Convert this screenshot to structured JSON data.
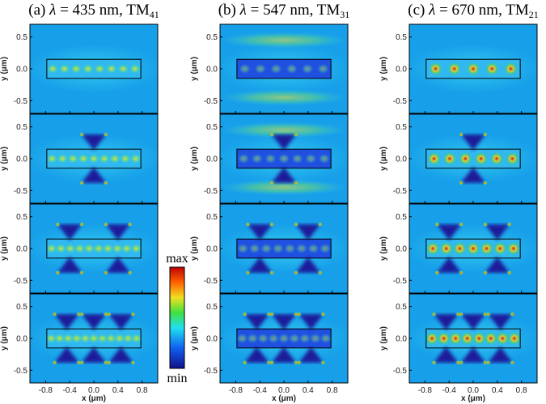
{
  "panels": [
    {
      "prefix": "(a) ",
      "symbol": "λ",
      "rest": " = 435 nm, TM",
      "mode": "41"
    },
    {
      "prefix": "(b) ",
      "symbol": "λ",
      "rest": " = 547 nm, TM",
      "mode": "31"
    },
    {
      "prefix": "(c) ",
      "symbol": "λ",
      "rest": " = 670 nm, TM",
      "mode": "21"
    }
  ],
  "axes": {
    "xlabel": "x (μm)",
    "ylabel": "y (μm)",
    "xlim": [
      -1.06,
      1.06
    ],
    "ylim": [
      -0.7,
      0.7
    ],
    "xticks": [
      -0.8,
      -0.4,
      {
        "value": 0,
        "label": "0.0"
      },
      0.4,
      0.8
    ],
    "yticks": [
      0.5,
      {
        "value": 0,
        "label": "0.0"
      },
      -0.5
    ]
  },
  "colorbar": {
    "max": "max",
    "min": "min"
  }
}
